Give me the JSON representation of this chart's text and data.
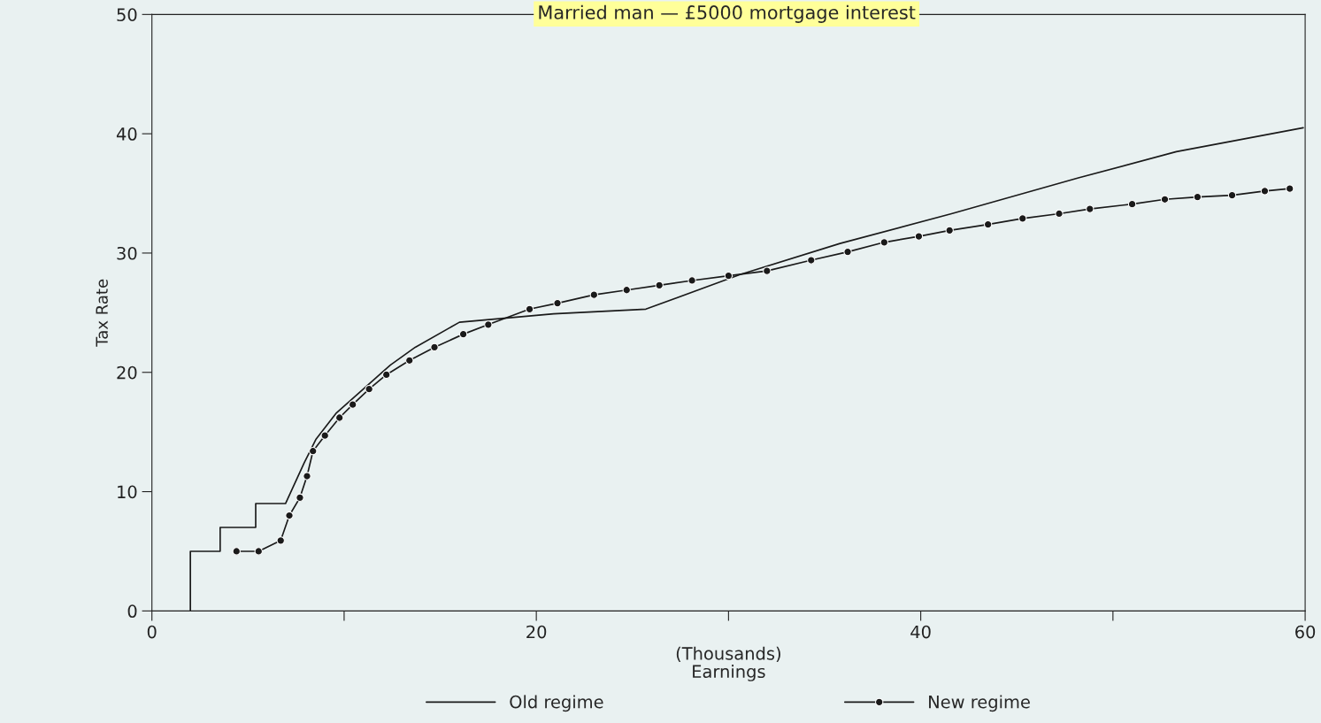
{
  "chart_data": {
    "type": "line",
    "title": "Married man — £5000 mortgage interest",
    "xlabel": "(Thousands)\nEarnings",
    "ylabel": "Tax Rate",
    "xlim": [
      0,
      60
    ],
    "xticks": [
      0,
      {
        "value": 10,
        "label": null
      },
      20,
      {
        "value": 30,
        "label": null
      },
      40,
      {
        "value": 50,
        "label": null
      },
      60
    ],
    "ylim": [
      0,
      50
    ],
    "yticks": [
      0,
      10,
      20,
      30,
      40,
      50
    ],
    "grid": false,
    "legend": "bottom",
    "series": [
      {
        "name": "Old regime",
        "color": "#1a1a1a",
        "marker": "none",
        "x": [
          2.0,
          2.0,
          3.55,
          3.55,
          5.4,
          5.4,
          6.95,
          7.92,
          8.54,
          9.6,
          11.0,
          12.4,
          13.7,
          16.0,
          20.9,
          25.7,
          30.6,
          35.8,
          41.6,
          48.2,
          53.3,
          59.9
        ],
        "values": [
          0,
          5.0,
          5.0,
          7.0,
          7.0,
          9.0,
          9.0,
          12.4,
          14.4,
          16.6,
          18.6,
          20.6,
          22.1,
          24.2,
          24.9,
          25.3,
          28.2,
          30.8,
          33.3,
          36.3,
          38.5,
          40.5
        ]
      },
      {
        "name": "New regime",
        "color": "#1a1a1a",
        "marker": "circle",
        "x": [
          4.4,
          5.55,
          6.7,
          7.15,
          7.7,
          8.07,
          8.38,
          9.0,
          9.76,
          10.45,
          11.3,
          12.2,
          13.4,
          14.7,
          16.2,
          17.5,
          19.65,
          21.1,
          23.0,
          24.7,
          26.4,
          28.1,
          30.0,
          32.0,
          34.3,
          36.2,
          38.1,
          39.9,
          41.5,
          43.5,
          45.3,
          47.2,
          48.8,
          51.0,
          52.7,
          54.4,
          56.2,
          57.9,
          59.2
        ],
        "values": [
          5.0,
          5.0,
          5.9,
          8.0,
          9.5,
          11.3,
          13.4,
          14.7,
          16.2,
          17.3,
          18.6,
          19.8,
          21.0,
          22.1,
          23.2,
          24.0,
          25.3,
          25.8,
          26.5,
          26.9,
          27.3,
          27.7,
          28.1,
          28.5,
          29.4,
          30.1,
          30.9,
          31.4,
          31.9,
          32.4,
          32.9,
          33.3,
          33.7,
          34.1,
          34.5,
          34.7,
          34.85,
          35.2,
          35.4
        ]
      }
    ]
  }
}
